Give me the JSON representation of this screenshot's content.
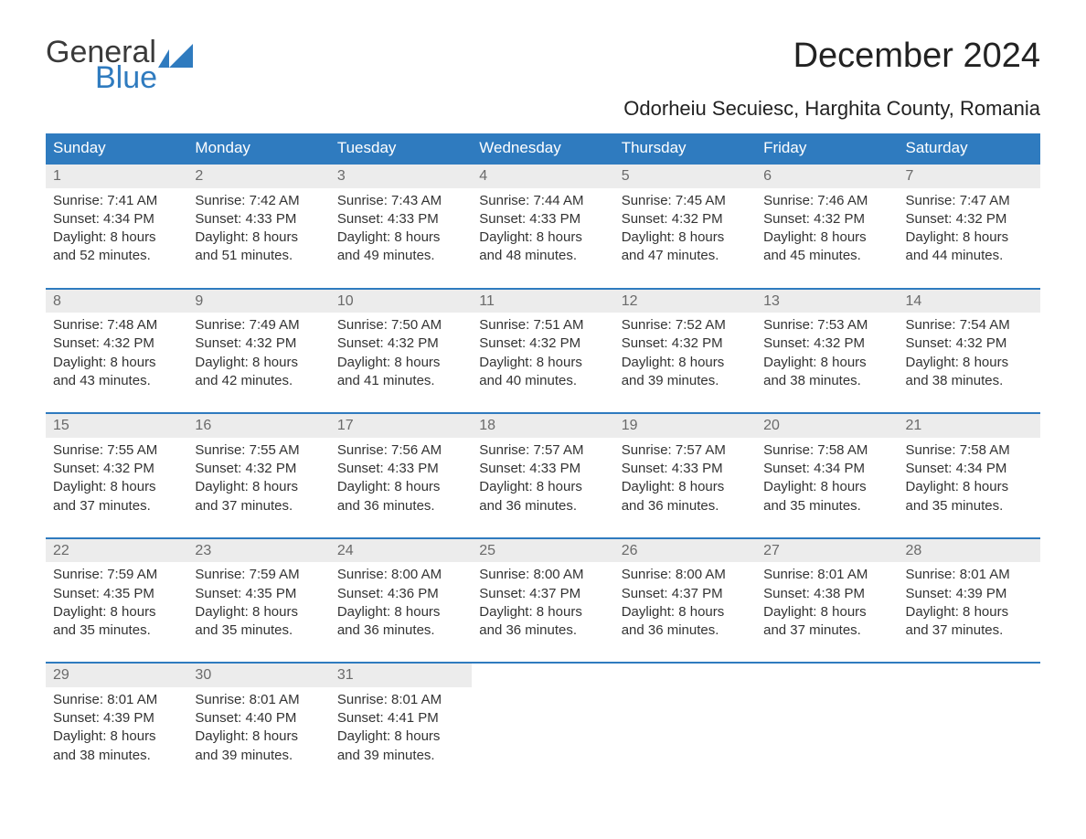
{
  "logo": {
    "line1": "General",
    "line2": "Blue",
    "flag_color": "#2f7bbf"
  },
  "title": "December 2024",
  "subtitle": "Odorheiu Secuiesc, Harghita County, Romania",
  "colors": {
    "header_bg": "#2f7bbf",
    "header_text": "#ffffff",
    "daynum_bg": "#ececec",
    "daynum_text": "#6a6a6a",
    "body_text": "#333333",
    "row_border": "#2f7bbf",
    "page_bg": "#ffffff"
  },
  "calendar": {
    "type": "table",
    "columns": [
      "Sunday",
      "Monday",
      "Tuesday",
      "Wednesday",
      "Thursday",
      "Friday",
      "Saturday"
    ],
    "col_count": 7,
    "header_fontsize": 17,
    "cell_fontsize": 15,
    "daynum_fontsize": 16
  },
  "days": [
    {
      "n": "1",
      "sunrise": "Sunrise: 7:41 AM",
      "sunset": "Sunset: 4:34 PM",
      "d1": "Daylight: 8 hours",
      "d2": "and 52 minutes."
    },
    {
      "n": "2",
      "sunrise": "Sunrise: 7:42 AM",
      "sunset": "Sunset: 4:33 PM",
      "d1": "Daylight: 8 hours",
      "d2": "and 51 minutes."
    },
    {
      "n": "3",
      "sunrise": "Sunrise: 7:43 AM",
      "sunset": "Sunset: 4:33 PM",
      "d1": "Daylight: 8 hours",
      "d2": "and 49 minutes."
    },
    {
      "n": "4",
      "sunrise": "Sunrise: 7:44 AM",
      "sunset": "Sunset: 4:33 PM",
      "d1": "Daylight: 8 hours",
      "d2": "and 48 minutes."
    },
    {
      "n": "5",
      "sunrise": "Sunrise: 7:45 AM",
      "sunset": "Sunset: 4:32 PM",
      "d1": "Daylight: 8 hours",
      "d2": "and 47 minutes."
    },
    {
      "n": "6",
      "sunrise": "Sunrise: 7:46 AM",
      "sunset": "Sunset: 4:32 PM",
      "d1": "Daylight: 8 hours",
      "d2": "and 45 minutes."
    },
    {
      "n": "7",
      "sunrise": "Sunrise: 7:47 AM",
      "sunset": "Sunset: 4:32 PM",
      "d1": "Daylight: 8 hours",
      "d2": "and 44 minutes."
    },
    {
      "n": "8",
      "sunrise": "Sunrise: 7:48 AM",
      "sunset": "Sunset: 4:32 PM",
      "d1": "Daylight: 8 hours",
      "d2": "and 43 minutes."
    },
    {
      "n": "9",
      "sunrise": "Sunrise: 7:49 AM",
      "sunset": "Sunset: 4:32 PM",
      "d1": "Daylight: 8 hours",
      "d2": "and 42 minutes."
    },
    {
      "n": "10",
      "sunrise": "Sunrise: 7:50 AM",
      "sunset": "Sunset: 4:32 PM",
      "d1": "Daylight: 8 hours",
      "d2": "and 41 minutes."
    },
    {
      "n": "11",
      "sunrise": "Sunrise: 7:51 AM",
      "sunset": "Sunset: 4:32 PM",
      "d1": "Daylight: 8 hours",
      "d2": "and 40 minutes."
    },
    {
      "n": "12",
      "sunrise": "Sunrise: 7:52 AM",
      "sunset": "Sunset: 4:32 PM",
      "d1": "Daylight: 8 hours",
      "d2": "and 39 minutes."
    },
    {
      "n": "13",
      "sunrise": "Sunrise: 7:53 AM",
      "sunset": "Sunset: 4:32 PM",
      "d1": "Daylight: 8 hours",
      "d2": "and 38 minutes."
    },
    {
      "n": "14",
      "sunrise": "Sunrise: 7:54 AM",
      "sunset": "Sunset: 4:32 PM",
      "d1": "Daylight: 8 hours",
      "d2": "and 38 minutes."
    },
    {
      "n": "15",
      "sunrise": "Sunrise: 7:55 AM",
      "sunset": "Sunset: 4:32 PM",
      "d1": "Daylight: 8 hours",
      "d2": "and 37 minutes."
    },
    {
      "n": "16",
      "sunrise": "Sunrise: 7:55 AM",
      "sunset": "Sunset: 4:32 PM",
      "d1": "Daylight: 8 hours",
      "d2": "and 37 minutes."
    },
    {
      "n": "17",
      "sunrise": "Sunrise: 7:56 AM",
      "sunset": "Sunset: 4:33 PM",
      "d1": "Daylight: 8 hours",
      "d2": "and 36 minutes."
    },
    {
      "n": "18",
      "sunrise": "Sunrise: 7:57 AM",
      "sunset": "Sunset: 4:33 PM",
      "d1": "Daylight: 8 hours",
      "d2": "and 36 minutes."
    },
    {
      "n": "19",
      "sunrise": "Sunrise: 7:57 AM",
      "sunset": "Sunset: 4:33 PM",
      "d1": "Daylight: 8 hours",
      "d2": "and 36 minutes."
    },
    {
      "n": "20",
      "sunrise": "Sunrise: 7:58 AM",
      "sunset": "Sunset: 4:34 PM",
      "d1": "Daylight: 8 hours",
      "d2": "and 35 minutes."
    },
    {
      "n": "21",
      "sunrise": "Sunrise: 7:58 AM",
      "sunset": "Sunset: 4:34 PM",
      "d1": "Daylight: 8 hours",
      "d2": "and 35 minutes."
    },
    {
      "n": "22",
      "sunrise": "Sunrise: 7:59 AM",
      "sunset": "Sunset: 4:35 PM",
      "d1": "Daylight: 8 hours",
      "d2": "and 35 minutes."
    },
    {
      "n": "23",
      "sunrise": "Sunrise: 7:59 AM",
      "sunset": "Sunset: 4:35 PM",
      "d1": "Daylight: 8 hours",
      "d2": "and 35 minutes."
    },
    {
      "n": "24",
      "sunrise": "Sunrise: 8:00 AM",
      "sunset": "Sunset: 4:36 PM",
      "d1": "Daylight: 8 hours",
      "d2": "and 36 minutes."
    },
    {
      "n": "25",
      "sunrise": "Sunrise: 8:00 AM",
      "sunset": "Sunset: 4:37 PM",
      "d1": "Daylight: 8 hours",
      "d2": "and 36 minutes."
    },
    {
      "n": "26",
      "sunrise": "Sunrise: 8:00 AM",
      "sunset": "Sunset: 4:37 PM",
      "d1": "Daylight: 8 hours",
      "d2": "and 36 minutes."
    },
    {
      "n": "27",
      "sunrise": "Sunrise: 8:01 AM",
      "sunset": "Sunset: 4:38 PM",
      "d1": "Daylight: 8 hours",
      "d2": "and 37 minutes."
    },
    {
      "n": "28",
      "sunrise": "Sunrise: 8:01 AM",
      "sunset": "Sunset: 4:39 PM",
      "d1": "Daylight: 8 hours",
      "d2": "and 37 minutes."
    },
    {
      "n": "29",
      "sunrise": "Sunrise: 8:01 AM",
      "sunset": "Sunset: 4:39 PM",
      "d1": "Daylight: 8 hours",
      "d2": "and 38 minutes."
    },
    {
      "n": "30",
      "sunrise": "Sunrise: 8:01 AM",
      "sunset": "Sunset: 4:40 PM",
      "d1": "Daylight: 8 hours",
      "d2": "and 39 minutes."
    },
    {
      "n": "31",
      "sunrise": "Sunrise: 8:01 AM",
      "sunset": "Sunset: 4:41 PM",
      "d1": "Daylight: 8 hours",
      "d2": "and 39 minutes."
    }
  ]
}
